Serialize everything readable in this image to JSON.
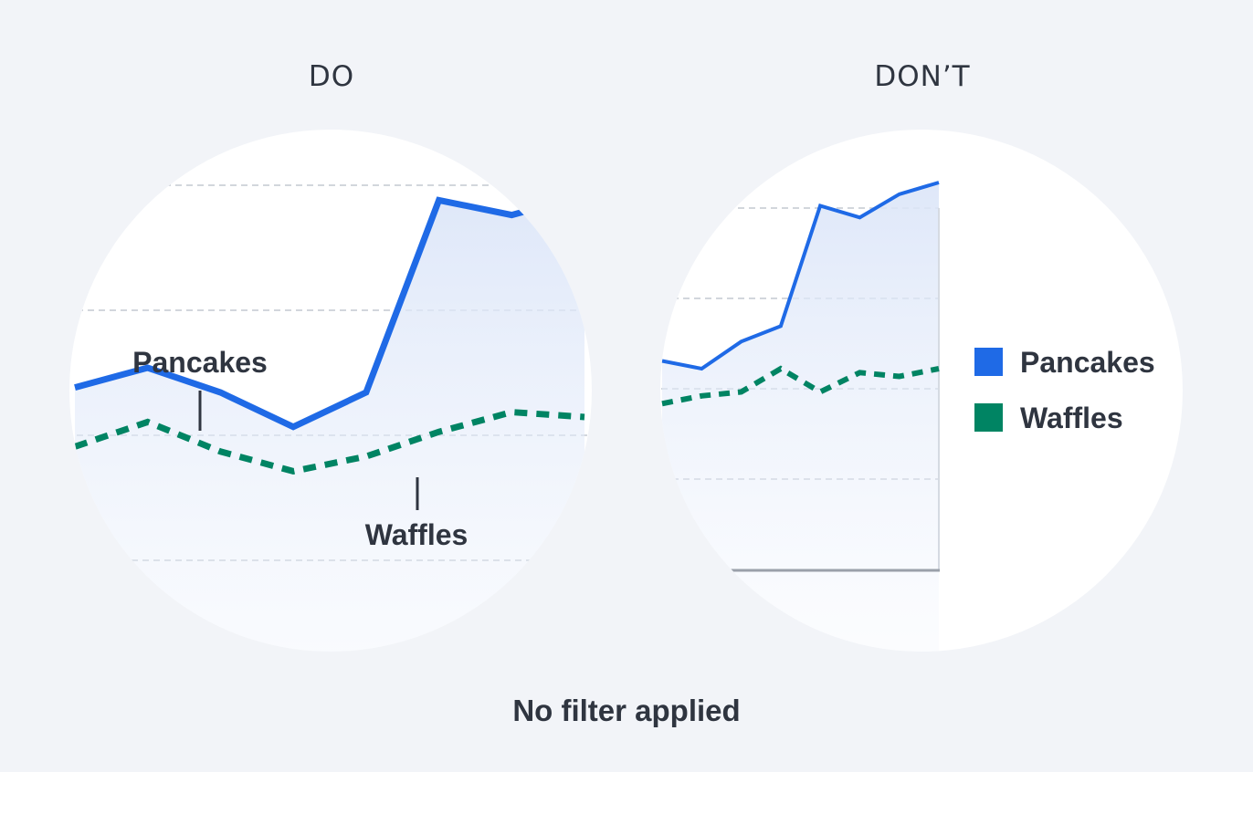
{
  "colors": {
    "pancakes": "#1f6ae6",
    "waffles": "#008463",
    "text": "#2f3540",
    "panel_bg": "#f2f4f8",
    "grid": "#c4c9d1",
    "axis": "#9aa0aa"
  },
  "panels": {
    "do_title": "DO",
    "dont_title": "DON’T"
  },
  "caption": "No filter applied",
  "chart_data": [
    {
      "type": "line",
      "panel": "DO",
      "legend": "direct labels",
      "grid": true,
      "x": [
        0,
        1,
        2,
        3,
        4,
        5,
        6,
        7
      ],
      "ylim": [
        0,
        10
      ],
      "series": [
        {
          "name": "Pancakes",
          "style": "solid",
          "values": [
            5.1,
            5.5,
            5.0,
            4.3,
            5.0,
            8.9,
            8.6,
            9.0
          ]
        },
        {
          "name": "Waffles",
          "style": "dashed",
          "values": [
            3.9,
            4.4,
            3.8,
            3.4,
            3.7,
            4.2,
            4.6,
            4.5
          ]
        }
      ]
    },
    {
      "type": "line",
      "panel": "DON’T",
      "legend": "right",
      "grid": true,
      "x": [
        0,
        1,
        2,
        3,
        4,
        5,
        6,
        7
      ],
      "ylim": [
        0,
        10
      ],
      "series": [
        {
          "name": "Pancakes",
          "style": "solid",
          "values": [
            5.4,
            5.2,
            5.9,
            6.3,
            9.4,
            9.1,
            9.7,
            10.0
          ]
        },
        {
          "name": "Waffles",
          "style": "dashed",
          "values": [
            4.3,
            4.5,
            4.6,
            5.2,
            4.6,
            5.1,
            5.0,
            5.2
          ]
        }
      ]
    }
  ]
}
